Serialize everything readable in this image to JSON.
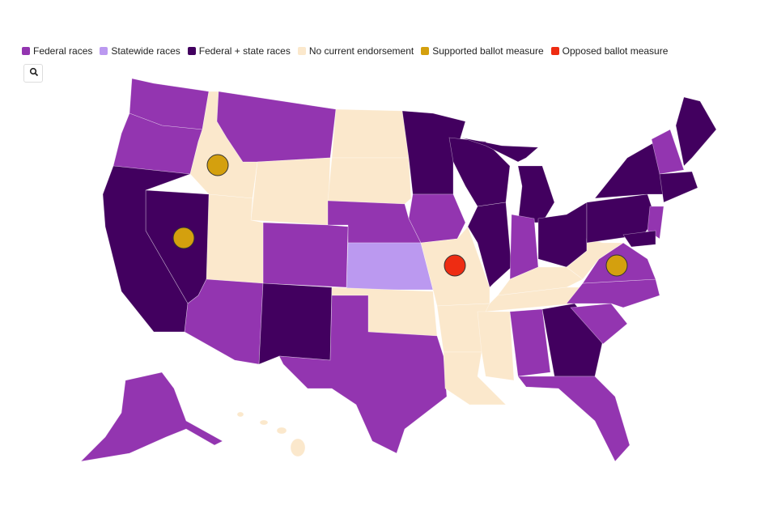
{
  "legend": [
    {
      "label": "Federal races",
      "color": "#9335b0"
    },
    {
      "label": "Statewide races",
      "color": "#bb99f0"
    },
    {
      "label": "Federal + state races",
      "color": "#42005f"
    },
    {
      "label": "No current endorsement",
      "color": "#fbe8cc"
    },
    {
      "label": "Supported ballot measure",
      "color": "#d4a00e"
    },
    {
      "label": "Opposed ballot measure",
      "color": "#ee2c12"
    }
  ]
}
